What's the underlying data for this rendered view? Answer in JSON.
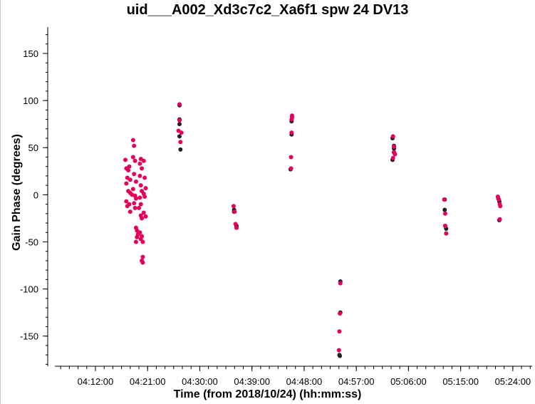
{
  "chart_data": {
    "type": "scatter",
    "title": "uid___A002_Xd3c7c2_Xa6f1 spw 24 DV13",
    "xlabel": "Time (from 2018/10/24) (hh:mm:ss)",
    "ylabel": "Gain Phase (degrees)",
    "xlim_seconds": [
      14520,
      19460
    ],
    "ylim": [
      -182,
      178
    ],
    "x_tick_seconds": [
      14940,
      15480,
      16020,
      16560,
      17100,
      17640,
      18180,
      18720,
      19260
    ],
    "x_tick_labels": [
      "04:12:00",
      "04:21:00",
      "04:30:00",
      "04:39:00",
      "04:48:00",
      "04:57:00",
      "05:06:00",
      "05:15:00",
      "05:24:00"
    ],
    "y_ticks": [
      150,
      100,
      50,
      0,
      -50,
      -100,
      -150
    ],
    "y_tick_labels": [
      "150",
      "100",
      "50",
      "0",
      "-50",
      "-100",
      "-150"
    ],
    "colors": {
      "pol0": "#e6005c",
      "pol1": "#222222",
      "axis": "#000000"
    },
    "series": [
      {
        "name": "pol1",
        "color": "#222222",
        "points": [
          [
            15810,
            95
          ],
          [
            15810,
            80
          ],
          [
            15810,
            75
          ],
          [
            15810,
            62
          ],
          [
            15820,
            48
          ],
          [
            16375,
            -16
          ],
          [
            16375,
            -18
          ],
          [
            16400,
            -33
          ],
          [
            16400,
            -35
          ],
          [
            16970,
            78
          ],
          [
            16970,
            64
          ],
          [
            16960,
            27
          ],
          [
            17475,
            -92
          ],
          [
            17475,
            -125
          ],
          [
            17465,
            -170
          ],
          [
            17470,
            -171
          ],
          [
            18015,
            60
          ],
          [
            18030,
            52
          ],
          [
            18030,
            49
          ],
          [
            18030,
            45
          ],
          [
            18015,
            37
          ],
          [
            18555,
            -5
          ],
          [
            18555,
            -16
          ],
          [
            18560,
            -33
          ],
          [
            18570,
            -36
          ],
          [
            19110,
            -4
          ],
          [
            19120,
            -7
          ],
          [
            19120,
            -27
          ]
        ]
      },
      {
        "name": "pol0",
        "color": "#e6005c",
        "points": [
          [
            15250,
            37
          ],
          [
            15260,
            28
          ],
          [
            15280,
            26
          ],
          [
            15290,
            30
          ],
          [
            15260,
            12
          ],
          [
            15270,
            18
          ],
          [
            15300,
            16
          ],
          [
            15280,
            4
          ],
          [
            15300,
            2
          ],
          [
            15320,
            0
          ],
          [
            15260,
            -7
          ],
          [
            15270,
            -12
          ],
          [
            15290,
            -10
          ],
          [
            15300,
            -18
          ],
          [
            15330,
            58
          ],
          [
            15340,
            52
          ],
          [
            15330,
            40
          ],
          [
            15350,
            36
          ],
          [
            15340,
            22
          ],
          [
            15360,
            14
          ],
          [
            15330,
            6
          ],
          [
            15350,
            -1
          ],
          [
            15360,
            -4
          ],
          [
            15340,
            -9
          ],
          [
            15350,
            -14
          ],
          [
            15360,
            -35
          ],
          [
            15370,
            -38
          ],
          [
            15380,
            -42
          ],
          [
            15370,
            -45
          ],
          [
            15360,
            -50
          ],
          [
            15400,
            33
          ],
          [
            15410,
            38
          ],
          [
            15420,
            28
          ],
          [
            15400,
            20
          ],
          [
            15410,
            10
          ],
          [
            15420,
            4
          ],
          [
            15400,
            -3
          ],
          [
            15410,
            -10
          ],
          [
            15390,
            -14
          ],
          [
            15410,
            -22
          ],
          [
            15420,
            -25
          ],
          [
            15400,
            -40
          ],
          [
            15420,
            -44
          ],
          [
            15410,
            -47
          ],
          [
            15430,
            -50
          ],
          [
            15440,
            36
          ],
          [
            15450,
            18
          ],
          [
            15460,
            7
          ],
          [
            15440,
            1
          ],
          [
            15450,
            -2
          ],
          [
            15440,
            -19
          ],
          [
            15460,
            -23
          ],
          [
            15430,
            -66
          ],
          [
            15420,
            -70
          ],
          [
            15430,
            -72
          ],
          [
            15810,
            96
          ],
          [
            15810,
            79
          ],
          [
            15800,
            68
          ],
          [
            15830,
            66
          ],
          [
            15820,
            56
          ],
          [
            16370,
            -12
          ],
          [
            16380,
            -18
          ],
          [
            16390,
            -31
          ],
          [
            16400,
            -35
          ],
          [
            16975,
            84
          ],
          [
            16975,
            82
          ],
          [
            16970,
            80
          ],
          [
            16970,
            66
          ],
          [
            16965,
            40
          ],
          [
            16965,
            28
          ],
          [
            17475,
            -94
          ],
          [
            17470,
            -126
          ],
          [
            17465,
            -145
          ],
          [
            17460,
            -165
          ],
          [
            18020,
            62
          ],
          [
            18030,
            51
          ],
          [
            18030,
            45
          ],
          [
            18040,
            43
          ],
          [
            18020,
            39
          ],
          [
            18550,
            -5
          ],
          [
            18560,
            -20
          ],
          [
            18560,
            -33
          ],
          [
            18570,
            -41
          ],
          [
            19105,
            -2
          ],
          [
            19115,
            -5
          ],
          [
            19125,
            -10
          ],
          [
            19130,
            -12
          ],
          [
            19125,
            -26
          ]
        ]
      }
    ]
  }
}
